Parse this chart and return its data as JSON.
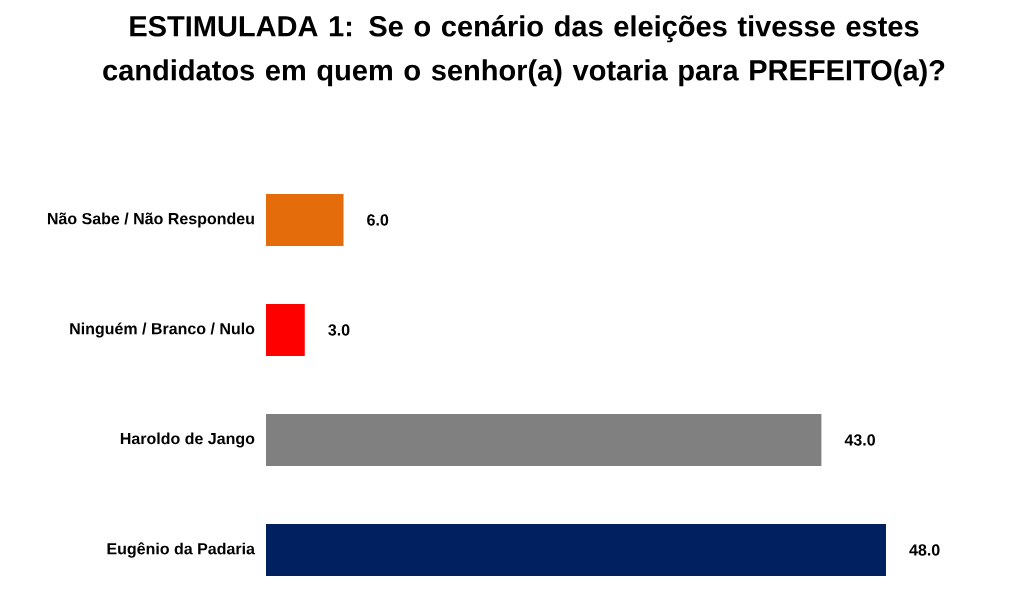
{
  "chart_data": {
    "type": "bar",
    "orientation": "horizontal",
    "title": "ESTIMULADA 1: Se o cenário das eleições tivesse estes candidatos em quem o senhor(a) votaria para PREFEITO(a)?",
    "categories": [
      "Não Sabe / Não Respondeu",
      "Ninguém / Branco / Nulo",
      "Haroldo de Jango",
      "Eugênio da Padaria"
    ],
    "values": [
      6.0,
      3.0,
      43.0,
      48.0
    ],
    "colors": [
      "#e46c0a",
      "#ff0000",
      "#808080",
      "#002060"
    ],
    "value_labels": [
      "6.0",
      "3.0",
      "43.0",
      "48.0"
    ],
    "tick_labels": "y"
  }
}
